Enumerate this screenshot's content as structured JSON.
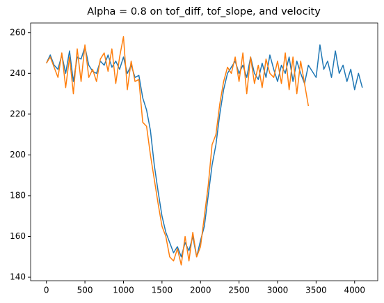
{
  "chart_data": {
    "type": "line",
    "title": "Alpha = 0.8 on tof_diff, tof_slope, and velocity",
    "x": [
      0,
      50,
      100,
      150,
      200,
      250,
      300,
      350,
      400,
      450,
      500,
      550,
      600,
      650,
      700,
      750,
      800,
      850,
      900,
      950,
      1000,
      1050,
      1100,
      1150,
      1200,
      1250,
      1300,
      1350,
      1400,
      1450,
      1500,
      1550,
      1600,
      1650,
      1700,
      1750,
      1800,
      1850,
      1900,
      1950,
      2000,
      2050,
      2100,
      2150,
      2200,
      2250,
      2300,
      2350,
      2400,
      2450,
      2500,
      2550,
      2600,
      2650,
      2700,
      2750,
      2800,
      2850,
      2900,
      2950,
      3000,
      3050,
      3100,
      3150,
      3200,
      3250,
      3300,
      3350,
      3400,
      3450,
      3500,
      3550,
      3600,
      3650,
      3700,
      3750,
      3800,
      3850,
      3900,
      3950,
      4000,
      4050,
      4100
    ],
    "series": [
      {
        "color": "#1f77b4",
        "values": [
          245,
          249,
          244,
          242,
          249,
          240,
          251,
          236,
          248,
          247,
          253,
          244,
          241,
          240,
          246,
          244,
          249,
          243,
          246,
          242,
          248,
          240,
          244,
          238,
          239,
          228,
          222,
          212,
          195,
          182,
          170,
          162,
          157,
          152,
          155,
          150,
          157,
          153,
          160,
          150,
          158,
          165,
          180,
          195,
          205,
          220,
          232,
          240,
          243,
          246,
          240,
          244,
          238,
          248,
          240,
          237,
          245,
          238,
          249,
          242,
          236,
          244,
          240,
          248,
          236,
          246,
          240,
          235,
          244,
          241,
          238,
          254,
          242,
          246,
          238,
          251,
          240,
          244,
          236,
          242,
          232,
          240,
          233
        ]
      },
      {
        "color": "#ff7f0e",
        "values": [
          245,
          248,
          243,
          238,
          250,
          233,
          248,
          230,
          252,
          236,
          254,
          238,
          242,
          236,
          247,
          250,
          241,
          252,
          235,
          248,
          258,
          232,
          246,
          236,
          237,
          216,
          214,
          200,
          188,
          176,
          165,
          160,
          150,
          148,
          154,
          146,
          160,
          148,
          162,
          150,
          155,
          170,
          185,
          205,
          210,
          225,
          236,
          243,
          240,
          248,
          236,
          250,
          230,
          248,
          235,
          244,
          233,
          247,
          240,
          238,
          246,
          235,
          250,
          232,
          248,
          230,
          246,
          235,
          224,
          null,
          null,
          null,
          null,
          null,
          null,
          null,
          null,
          null,
          null,
          null,
          null,
          null,
          null
        ]
      }
    ],
    "xlim": [
      -205,
      4300
    ],
    "ylim": [
      138.3,
      264.7
    ],
    "xticks": [
      0,
      500,
      1000,
      1500,
      2000,
      2500,
      3000,
      3500,
      4000
    ],
    "yticks": [
      140,
      160,
      180,
      200,
      220,
      240,
      260
    ],
    "grid": false
  }
}
